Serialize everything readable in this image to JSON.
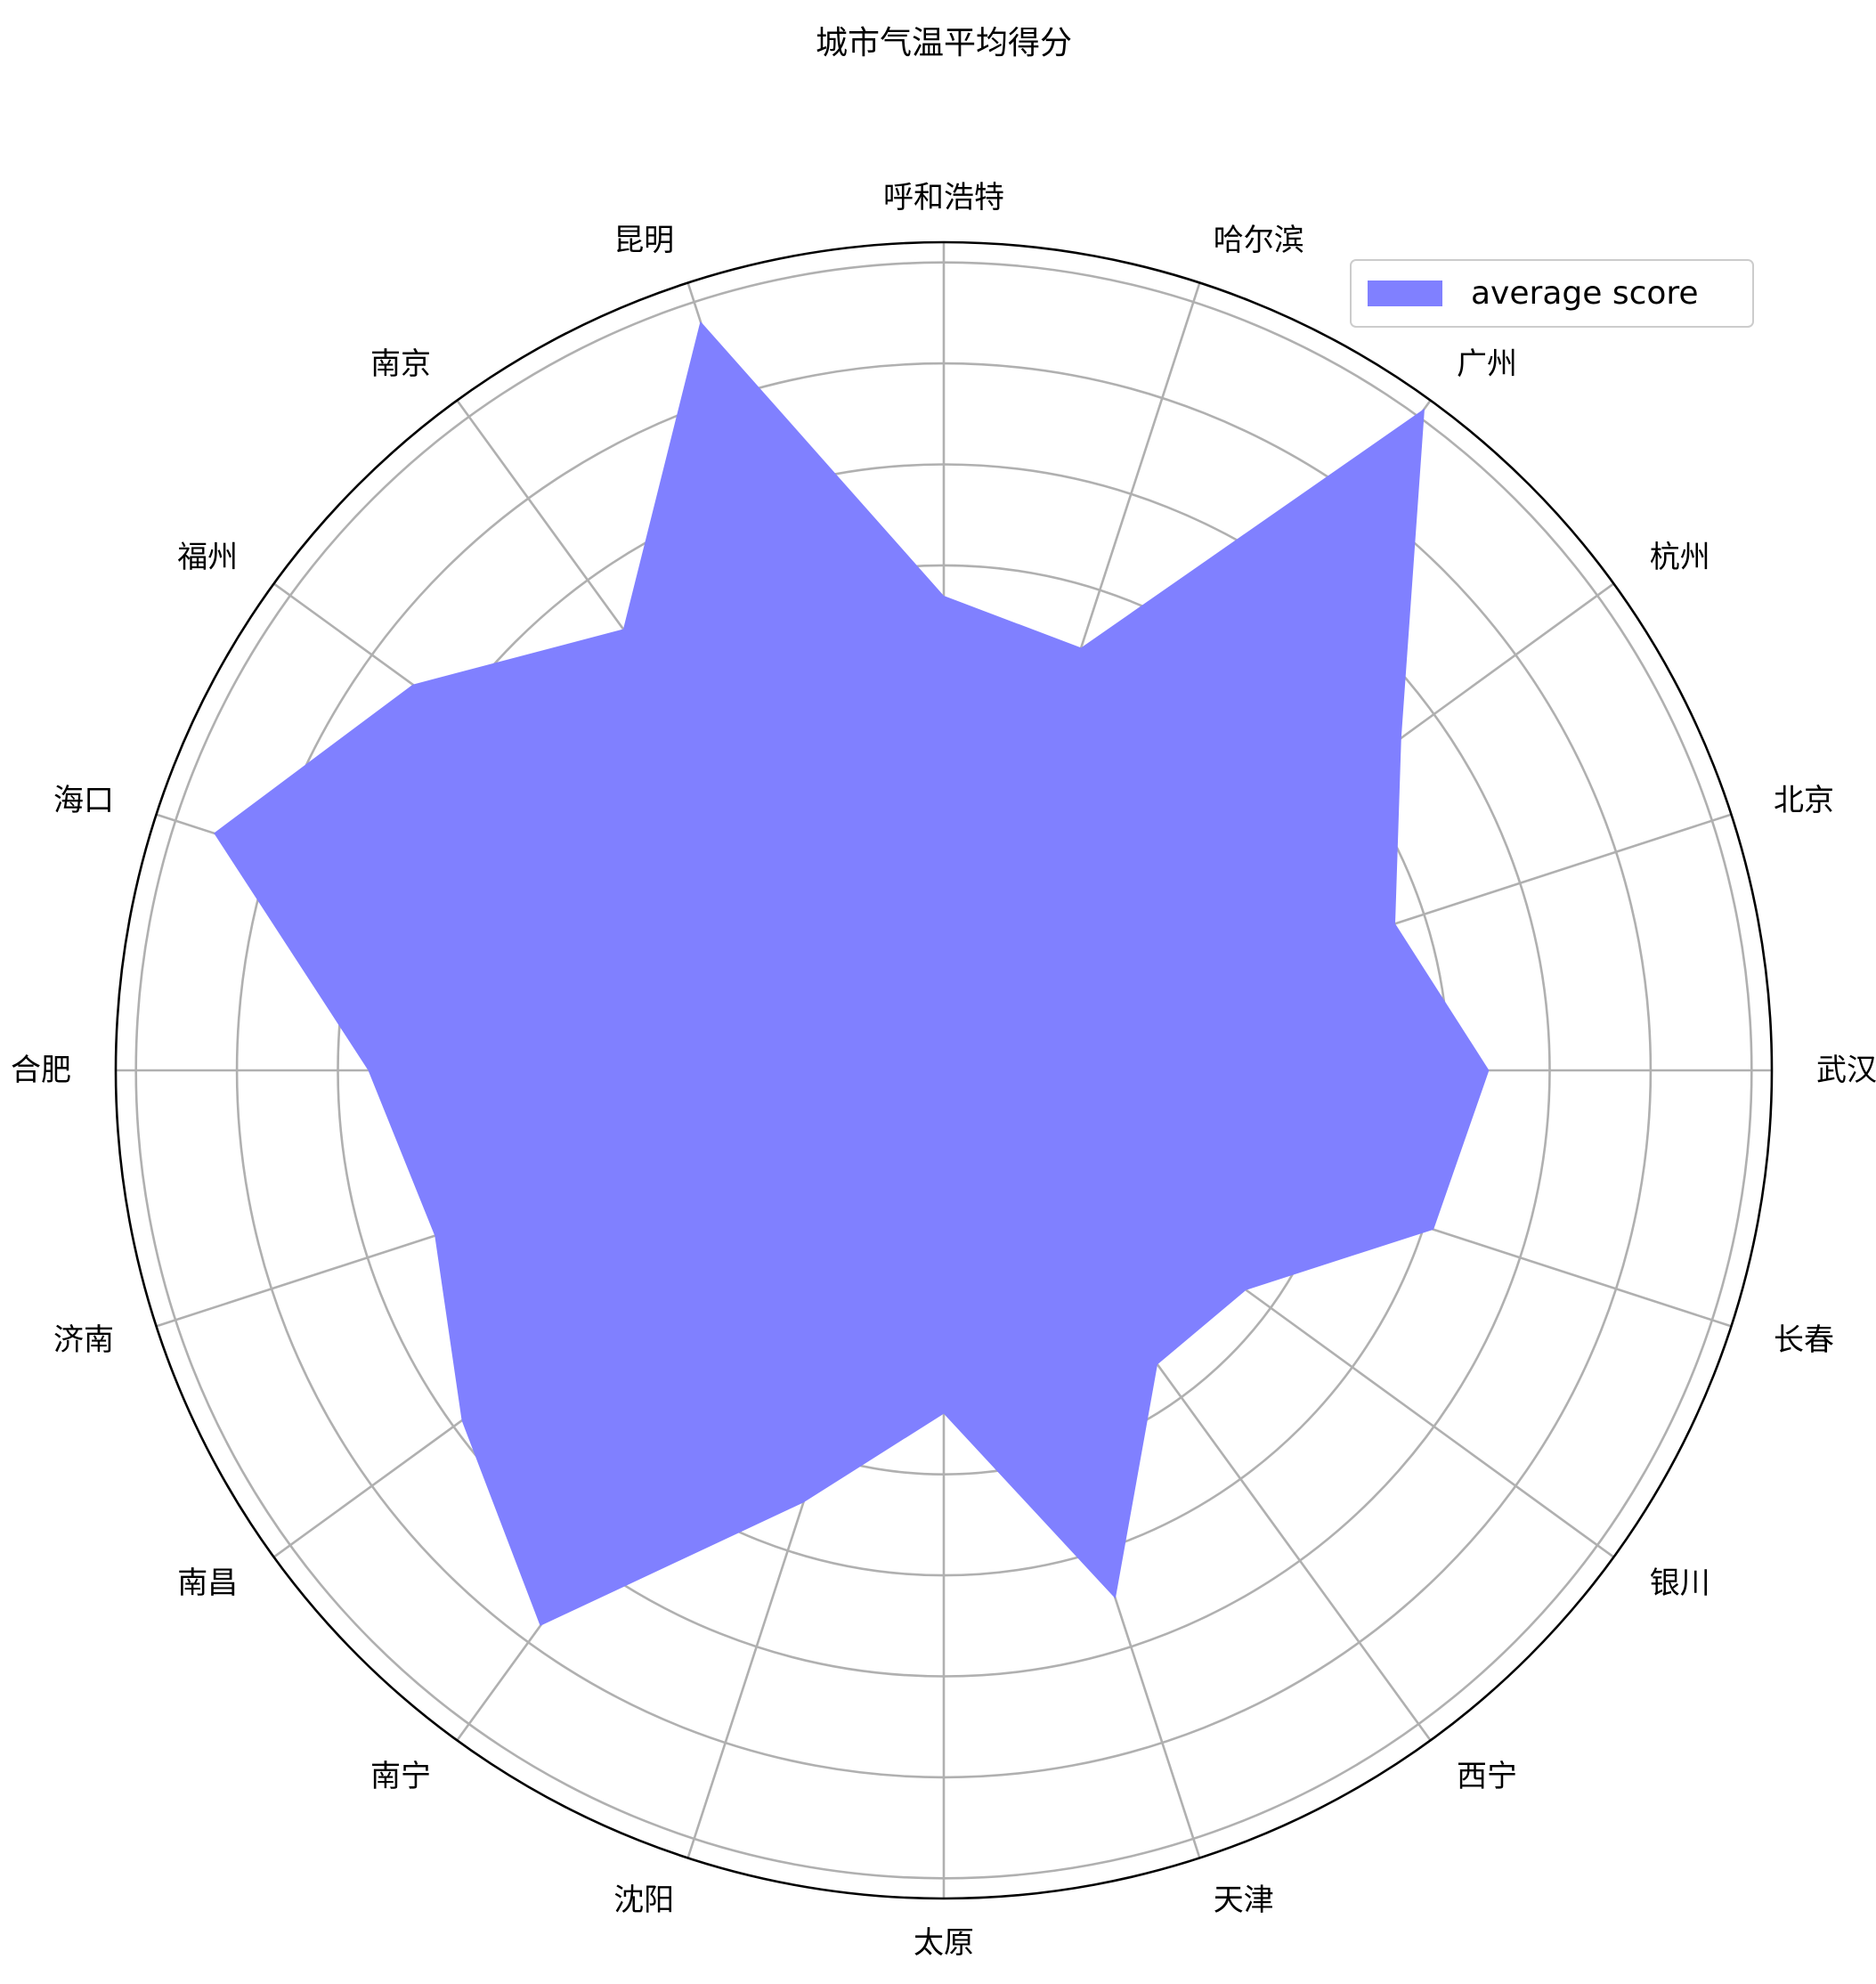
{
  "chart_data": {
    "type": "radar",
    "title": "城市气温平均得分",
    "categories": [
      "武汉",
      "北京",
      "杭州",
      "广州",
      "哈尔滨",
      "呼和浩特",
      "昆明",
      "南京",
      "福州",
      "海口",
      "合肥",
      "济南",
      "南昌",
      "南宁",
      "沈阳",
      "太原",
      "天津",
      "西宁",
      "银川",
      "长春"
    ],
    "series": [
      {
        "name": "average score",
        "values": [
          5.4,
          4.7,
          5.6,
          8.1,
          4.4,
          4.7,
          7.8,
          5.4,
          6.5,
          7.6,
          5.7,
          5.3,
          5.9,
          6.8,
          4.5,
          3.4,
          5.5,
          3.6,
          3.7,
          5.1
        ]
      }
    ],
    "rlim": [
      0,
      8.2
    ],
    "ring_values": [
      1,
      2,
      3,
      4,
      5,
      6,
      7,
      8
    ],
    "grid": true,
    "legend_placement": "top-right",
    "colors": {
      "fill": "#8080ff",
      "grid": "#b0b0b0",
      "outer": "#000000"
    }
  }
}
